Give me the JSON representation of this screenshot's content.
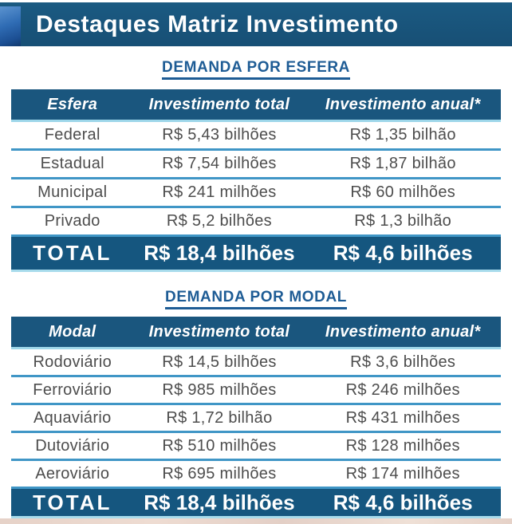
{
  "page": {
    "title": "Destaques Matriz Investimento"
  },
  "sections": [
    {
      "title": "DEMANDA POR ESFERA",
      "columns": [
        "Esfera",
        "Investimento total",
        "Investimento anual*"
      ],
      "rows": [
        [
          "Federal",
          "R$ 5,43 bilhões",
          "R$ 1,35 bilhão"
        ],
        [
          "Estadual",
          "R$ 7,54 bilhões",
          "R$ 1,87 bilhão"
        ],
        [
          "Municipal",
          "R$ 241 milhões",
          "R$ 60 milhões"
        ],
        [
          "Privado",
          "R$ 5,2 bilhões",
          "R$ 1,3 bilhão"
        ]
      ],
      "total": [
        "TOTAL",
        "R$ 18,4 bilhões",
        "R$ 4,6 bilhões"
      ]
    },
    {
      "title": "DEMANDA POR MODAL",
      "columns": [
        "Modal",
        "Investimento total",
        "Investimento anual*"
      ],
      "rows": [
        [
          "Rodoviário",
          "R$ 14,5 bilhões",
          "R$ 3,6 bilhões"
        ],
        [
          "Ferroviário",
          "R$ 985 milhões",
          "R$ 246 milhões"
        ],
        [
          "Aquaviário",
          "R$ 1,72 bilhão",
          "R$ 431 milhões"
        ],
        [
          "Dutoviário",
          "R$ 510 milhões",
          "R$ 128 milhões"
        ],
        [
          "Aeroviário",
          "R$ 695 milhões",
          "R$ 174 milhões"
        ]
      ],
      "total": [
        "TOTAL",
        "R$ 18,4 bilhões",
        "R$ 4,6 bilhões"
      ]
    }
  ],
  "colors": {
    "banner_blue": "#1a567e",
    "separator_blue": "#4096c6",
    "light_edge_blue": "#9ed7ea",
    "section_title_blue": "#1e5c95",
    "body_text": "#4d4d4d"
  }
}
